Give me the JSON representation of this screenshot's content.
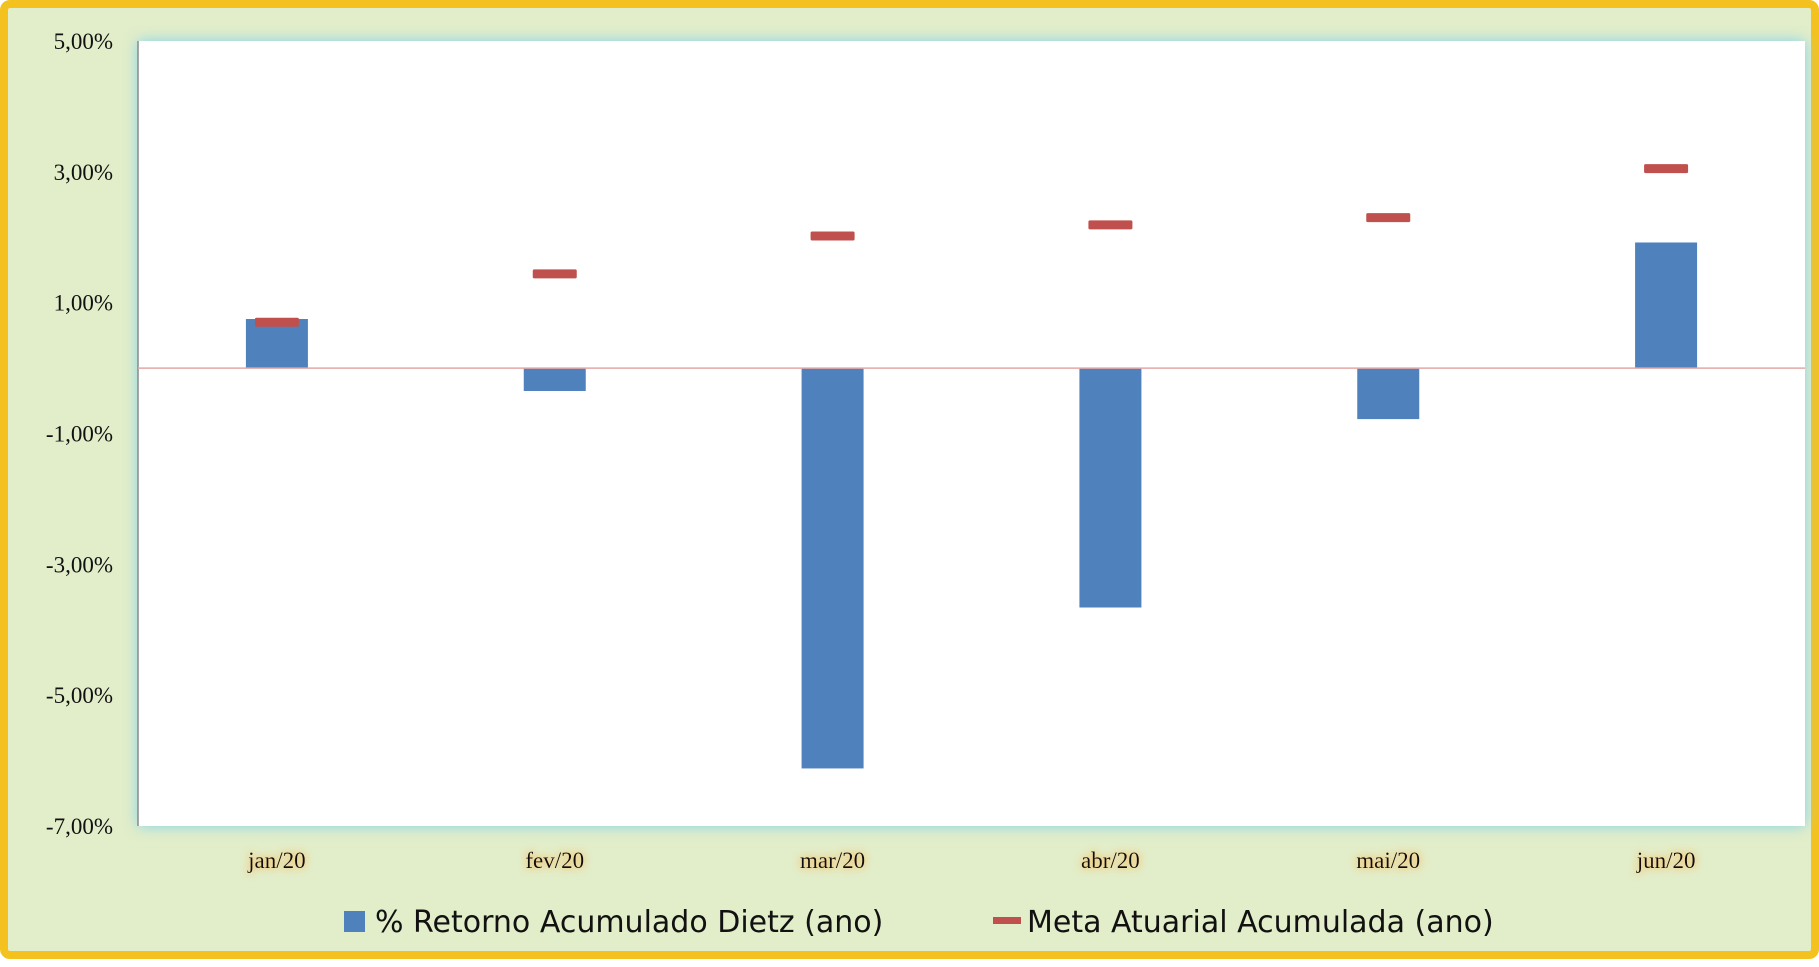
{
  "chart_data": {
    "type": "bar",
    "categories": [
      "jan/20",
      "fev/20",
      "mar/20",
      "abr/20",
      "mai/20",
      "jun/20"
    ],
    "series": [
      {
        "name": "% Retorno Acumulado Dietz (ano)",
        "kind": "bar",
        "color": "#4f81bd",
        "values": [
          0.75,
          -0.35,
          -6.12,
          -3.66,
          -0.78,
          1.92
        ]
      },
      {
        "name": "Meta Atuarial Acumulada (ano)",
        "kind": "marker",
        "color": "#c0504d",
        "values": [
          0.7,
          1.44,
          2.02,
          2.19,
          2.3,
          3.05
        ]
      }
    ],
    "title": "",
    "xlabel": "",
    "ylabel": "",
    "ylim": [
      -7,
      5
    ],
    "yticks": [
      5,
      3,
      1,
      -1,
      -3,
      -5,
      -7
    ],
    "ytick_labels": [
      "5,00%",
      "3,00%",
      "1,00%",
      "-1,00%",
      "-3,00%",
      "-5,00%",
      "-7,00%"
    ],
    "grid": false,
    "legend": "bottom"
  }
}
